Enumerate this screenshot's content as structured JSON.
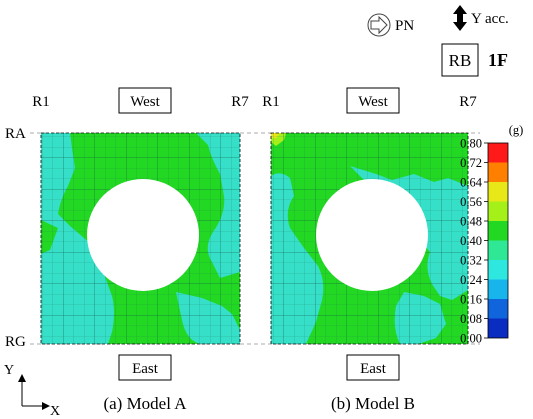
{
  "header": {
    "pn_label": "PN",
    "yacc_label": "Y acc.",
    "rb_label": "RB",
    "floor_label": "1F"
  },
  "panel_a": {
    "left_axis": "R1",
    "right_axis": "R7",
    "top_label": "West",
    "bottom_label": "East",
    "caption": "(a) Model A"
  },
  "panel_b": {
    "left_axis": "R1",
    "right_axis": "R7",
    "top_label": "West",
    "bottom_label": "East",
    "caption": "(b) Model B"
  },
  "row_labels": {
    "top": "RA",
    "bottom": "RG"
  },
  "axes": {
    "y_label": "Y",
    "x_label": "X"
  },
  "legend": {
    "unit": "(g)",
    "ticks": [
      "0.80",
      "0.72",
      "0.64",
      "0.56",
      "0.48",
      "0.40",
      "0.32",
      "0.24",
      "0.16",
      "0.08",
      "0.00"
    ],
    "colors": [
      "#ff1a1a",
      "#ff8000",
      "#e8e818",
      "#a6f01a",
      "#22d822",
      "#2ee896",
      "#2ee8e0",
      "#18b4ec",
      "#1064dc",
      "#0a2cc0"
    ]
  },
  "colors": {
    "green": "#22d822",
    "cyan": "#36e0c8",
    "grid": "#1e6e5e"
  }
}
